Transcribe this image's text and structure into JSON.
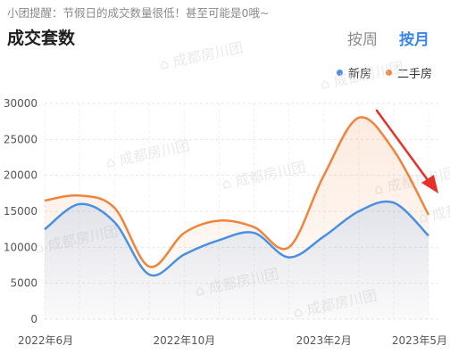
{
  "header": {
    "tip": "小团提醒：节假日的成交数量很低！甚至可能是0哦~",
    "title": "成交套数",
    "tabs": [
      {
        "label": "按周",
        "active": false
      },
      {
        "label": "按月",
        "active": true
      }
    ]
  },
  "watermark": "成都房川团",
  "chart_data": {
    "type": "area",
    "x": [
      "2022-06",
      "2022-07",
      "2022-08",
      "2022-09",
      "2022-10",
      "2022-11",
      "2022-12",
      "2023-01",
      "2023-02",
      "2023-03",
      "2023-04",
      "2023-05"
    ],
    "xtick_labels": [
      "2022年6月",
      "2022年10月",
      "2023年2月",
      "2023年5月"
    ],
    "xtick_positions": [
      "2022-06",
      "2022-10",
      "2023-02",
      "2023-05"
    ],
    "series": [
      {
        "name": "新房",
        "color": "#4a90e2",
        "values": [
          12500,
          16000,
          13500,
          6200,
          9000,
          11000,
          12000,
          8600,
          11500,
          15000,
          16200,
          11600
        ]
      },
      {
        "name": "二手房",
        "color": "#f0843c",
        "values": [
          16500,
          17200,
          15500,
          7300,
          12000,
          13700,
          12800,
          10000,
          20000,
          28000,
          23500,
          14500
        ]
      }
    ],
    "ylim": [
      0,
      30000
    ],
    "yticks": [
      0,
      5000,
      10000,
      15000,
      20000,
      25000,
      30000
    ],
    "grid": true,
    "legend_position": "top-right"
  },
  "annotation": {
    "type": "arrow",
    "color": "#e8302a"
  }
}
